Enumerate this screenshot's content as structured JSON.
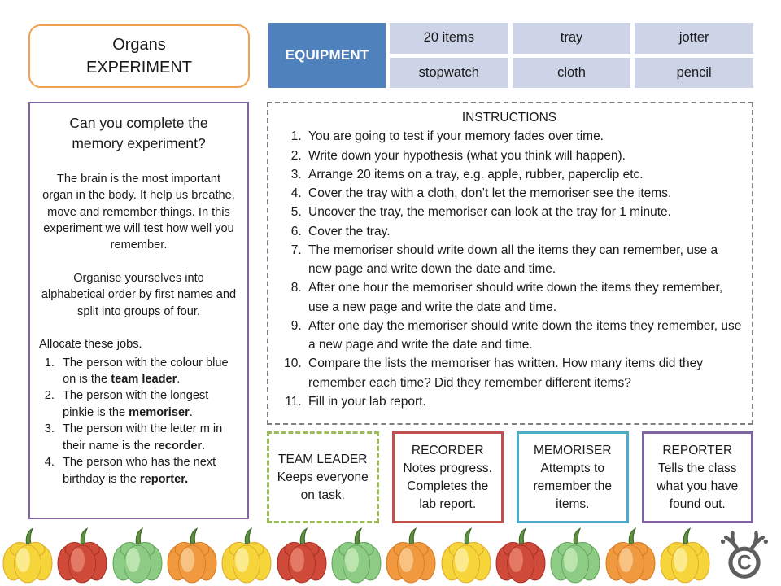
{
  "title": {
    "line1": "Organs",
    "line2": "EXPERIMENT"
  },
  "equipment": {
    "header": "EQUIPMENT",
    "rows": [
      [
        "20 items",
        "tray",
        "jotter"
      ],
      [
        "stopwatch",
        "cloth",
        "pencil"
      ]
    ]
  },
  "intro": {
    "heading": "Can you complete the memory experiment?",
    "para1": "The brain is the most important organ in the body. It help us breathe, move and remember things. In this experiment we will test how well you remember.",
    "para2": "Organise yourselves into alphabetical order by first names and split into groups of four.",
    "jobs_label": "Allocate these jobs.",
    "jobs": [
      {
        "pre": "The person with the colour blue on is the ",
        "bold": "team leader",
        "post": "."
      },
      {
        "pre": "The person with the longest pinkie is the ",
        "bold": "memoriser",
        "post": "."
      },
      {
        "pre": "The person with the letter m in their name is the ",
        "bold": "recorder",
        "post": "."
      },
      {
        "pre": "The person who has the next birthday is the ",
        "bold": "reporter.",
        "post": ""
      }
    ]
  },
  "instructions": {
    "heading": "INSTRUCTIONS",
    "steps": [
      "You are going to test if your memory fades over time.",
      "Write down your hypothesis (what you think will happen).",
      "Arrange 20 items on a tray, e.g. apple, rubber, paperclip etc.",
      "Cover the tray with a cloth, don’t let the memoriser see the items.",
      "Uncover the tray, the memoriser can look at the tray for 1 minute.",
      "Cover the tray.",
      "The memoriser should write down all the items they can remember, use a new page and write down the date and time.",
      "After one hour the memoriser should write down the items they remember, use a new page and write the date and time.",
      "After one day the memoriser should write down the items they remember, use a new page and write the date and time.",
      "Compare the lists the memoriser has written. How many items did they remember each time? Did they remember different items?",
      "Fill in your lab report."
    ]
  },
  "roles": [
    {
      "name": "TEAM LEADER",
      "desc": "Keeps everyone on task.",
      "border_color": "#9BBB59",
      "border_style": "dashed"
    },
    {
      "name": "RECORDER",
      "desc": "Notes progress. Completes the lab report.",
      "border_color": "#C0504D",
      "border_style": "solid"
    },
    {
      "name": "MEMORISER",
      "desc": "Attempts to remember the items.",
      "border_color": "#4BACC6",
      "border_style": "solid"
    },
    {
      "name": "REPORTER",
      "desc": "Tells the class what you have found out.",
      "border_color": "#8064A2",
      "border_style": "solid"
    }
  ],
  "footer": {
    "peppers": [
      "yellow",
      "red",
      "green",
      "orange",
      "yellow",
      "red",
      "green",
      "orange",
      "yellow",
      "red",
      "green",
      "orange",
      "yellow"
    ],
    "logo_icon": "copyright-moose-icon"
  },
  "colors": {
    "title_border": "#F0A04E",
    "intro_border": "#8064A2",
    "equipment_header_bg": "#4F81BD",
    "equipment_cell_bg": "#CDD4E8",
    "instructions_border": "#7F7F7F",
    "logo_gray": "#5E5E5E",
    "pepper_palette": {
      "yellow": {
        "body": "#F6D53A",
        "light": "#FCEF9C",
        "dark": "#DCA728"
      },
      "red": {
        "body": "#CF4A38",
        "light": "#E8826F",
        "dark": "#A33021"
      },
      "green": {
        "body": "#8CCC84",
        "light": "#C4E8B6",
        "dark": "#5FA356"
      },
      "orange": {
        "body": "#F0993F",
        "light": "#F9C98F",
        "dark": "#D4771F"
      }
    },
    "pepper_stem": "#5E9140",
    "pepper_stem_dark": "#3E692B"
  }
}
